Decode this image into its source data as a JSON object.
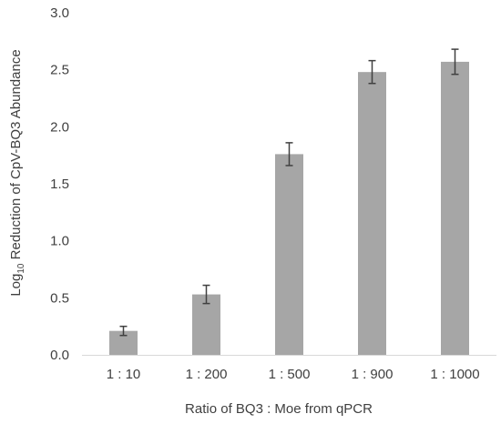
{
  "chart_data": {
    "type": "bar",
    "categories": [
      "1 : 10",
      "1 : 200",
      "1 : 500",
      "1 : 900",
      "1 : 1000"
    ],
    "values": [
      0.21,
      0.53,
      1.76,
      2.48,
      2.57
    ],
    "error": [
      0.04,
      0.08,
      0.1,
      0.1,
      0.11
    ],
    "xlabel": "Ratio of BQ3 : Moe from qPCR",
    "ylabel": {
      "prefix": "Log",
      "subscript": "10",
      "rest": " Reduction of CpV-BQ3 Abundance"
    },
    "ylim": [
      0,
      3.0
    ],
    "yticks": [
      "0.0",
      "0.5",
      "1.0",
      "1.5",
      "2.0",
      "2.5",
      "3.0"
    ],
    "grid": false,
    "legend": "none",
    "colors": {
      "bar": "#a6a6a6",
      "error": "#404040",
      "axis": "#d9d9d9",
      "text": "#404040"
    }
  }
}
